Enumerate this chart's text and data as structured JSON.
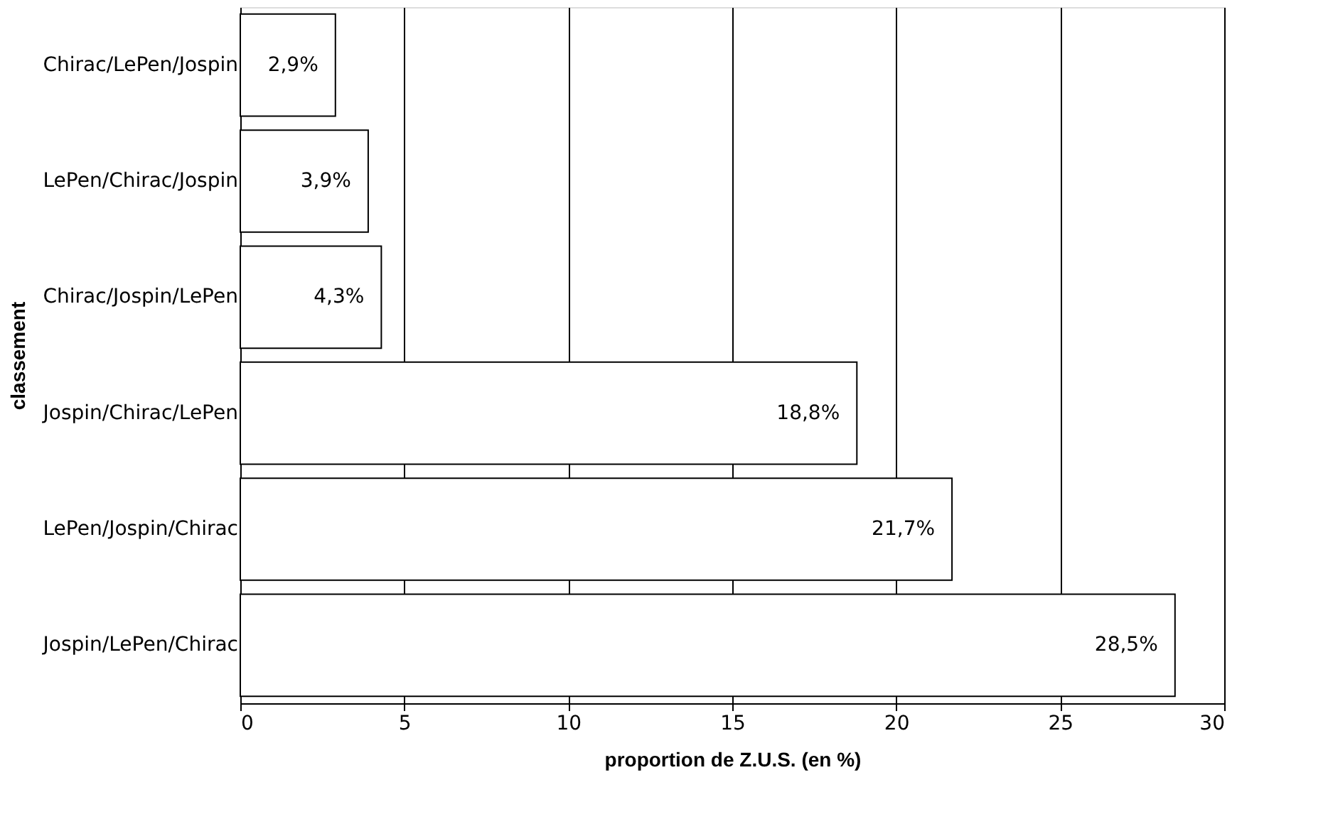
{
  "chart_data": {
    "type": "bar",
    "orientation": "horizontal",
    "categories": [
      "Chirac/LePen/Jospin",
      "LePen/Chirac/Jospin",
      "Chirac/Jospin/LePen",
      "Jospin/Chirac/LePen",
      "LePen/Jospin/Chirac",
      "Jospin/LePen/Chirac"
    ],
    "values": [
      2.9,
      3.9,
      4.3,
      18.8,
      21.7,
      28.5
    ],
    "value_labels": [
      "2,9%",
      "3,9%",
      "4,3%",
      "18,8%",
      "21,7%",
      "28,5%"
    ],
    "color": "#ffffff",
    "xlabel": "proportion de Z.U.S. (en %)",
    "ylabel": "classement",
    "xlim": [
      0,
      30
    ],
    "xticks": [
      0,
      5,
      10,
      15,
      20,
      25,
      30
    ],
    "grid": "x"
  }
}
